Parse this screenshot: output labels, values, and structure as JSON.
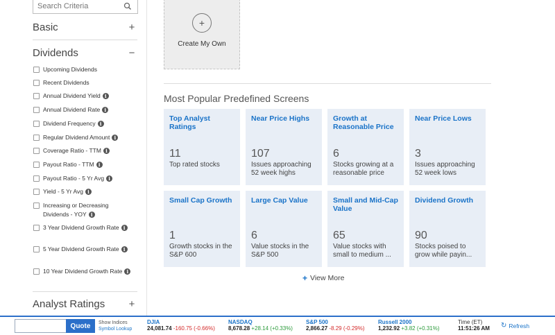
{
  "sidebar": {
    "search_placeholder": "Search Criteria",
    "sections": {
      "basic": {
        "label": "Basic",
        "toggle": "+"
      },
      "dividends": {
        "label": "Dividends",
        "toggle": "−"
      },
      "analyst": {
        "label": "Analyst Ratings",
        "toggle": "+"
      }
    },
    "criteria": [
      {
        "label": "Upcoming Dividends",
        "info": false
      },
      {
        "label": "Recent Dividends",
        "info": false
      },
      {
        "label": "Annual Dividend Yield",
        "info": true
      },
      {
        "label": "Annual Dividend Rate",
        "info": true
      },
      {
        "label": "Dividend Frequency",
        "info": true
      },
      {
        "label": "Regular Dividend Amount",
        "info": true
      },
      {
        "label": "Coverage Ratio - TTM",
        "info": true
      },
      {
        "label": "Payout Ratio - TTM",
        "info": true
      },
      {
        "label": "Payout Ratio - 5 Yr Avg",
        "info": true
      },
      {
        "label": "Yield - 5 Yr Avg",
        "info": true
      },
      {
        "label": "Increasing or Decreasing Dividends - YOY",
        "info": true
      },
      {
        "label": "3 Year Dividend Growth Rate",
        "info": true
      },
      {
        "label": "5 Year Dividend Growth Rate",
        "info": true
      },
      {
        "label": "10 Year Dividend Growth Rate",
        "info": true
      }
    ],
    "info_glyph": "i"
  },
  "main": {
    "create_label": "Create My Own",
    "create_icon": "plus-icon",
    "create_glyph": "+",
    "section_title": "Most Popular Predefined Screens",
    "tiles": [
      {
        "name": "Top Analyst Ratings",
        "count": "11",
        "desc": "Top rated stocks"
      },
      {
        "name": "Near Price Highs",
        "count": "107",
        "desc": "Issues approaching 52 week highs"
      },
      {
        "name": "Growth at Reasonable Price",
        "count": "6",
        "desc": "Stocks growing at a reasonable price"
      },
      {
        "name": "Near Price Lows",
        "count": "3",
        "desc": "Issues approaching 52 week lows"
      },
      {
        "name": "Small Cap Growth",
        "count": "1",
        "desc": "Growth stocks in the S&P 600"
      },
      {
        "name": "Large Cap Value",
        "count": "6",
        "desc": "Value stocks in the S&P 500"
      },
      {
        "name": "Small and Mid-Cap Value",
        "count": "65",
        "desc": "Value stocks with small to medium ..."
      },
      {
        "name": "Dividend Growth",
        "count": "90",
        "desc": "Stocks poised to grow while payin..."
      }
    ],
    "view_more_glyph": "+",
    "view_more": "View More"
  },
  "ticker": {
    "quote_button": "Quote",
    "show_indices": "Show Indices",
    "symbol_lookup": "Symbol Lookup",
    "indices": [
      {
        "name": "DJIA",
        "value": "24,081.74",
        "change": "-160.75 (-0.66%)",
        "dir": "neg"
      },
      {
        "name": "NASDAQ",
        "value": "8,678.28",
        "change": "+28.14 (+0.33%)",
        "dir": "pos"
      },
      {
        "name": "S&P 500",
        "value": "2,866.27",
        "change": "-8.29 (-0.29%)",
        "dir": "neg"
      },
      {
        "name": "Russell 2000",
        "value": "1,232.92",
        "change": "+3.82 (+0.31%)",
        "dir": "pos"
      }
    ],
    "time_label": "Time (ET)",
    "time_value": "11:51:26 AM",
    "refresh": "Refresh",
    "refresh_glyph": "↻"
  },
  "colors": {
    "accent": "#1a73c8",
    "tile_bg": "#e8eef6",
    "negative": "#d42a2a",
    "positive": "#2b9a3a",
    "ticker_border": "#2b6fc9"
  }
}
